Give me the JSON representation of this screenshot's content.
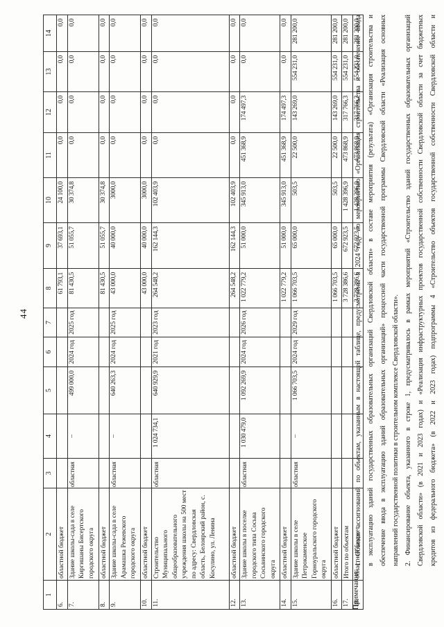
{
  "page": {
    "number": "44"
  },
  "table": {
    "column_headers": [
      "1",
      "2",
      "3",
      "4",
      "5",
      "6",
      "7",
      "8",
      "9",
      "10",
      "11",
      "12",
      "13",
      "14"
    ],
    "rows": [
      {
        "cells": [
          "6.",
          "областной бюджет",
          "",
          "",
          "",
          "",
          "",
          "61 793,1",
          "37 693,1",
          "24 100,0",
          "0,0",
          "0,0",
          "0,0",
          "0,0"
        ]
      },
      {
        "cells": [
          "7.",
          "Здание школы-сада в селе Киргишаны Бисертского городского округа",
          "областная",
          "–",
          "499 000,0",
          "2024 год",
          "2025 год",
          "81 430,5",
          "51 055,7",
          "30 374,8",
          "0,0",
          "0,0",
          "0,0",
          "0,0"
        ]
      },
      {
        "cells": [
          "8.",
          "областной бюджет",
          "",
          "",
          "",
          "",
          "",
          "81 430,5",
          "51 055,7",
          "30 374,8",
          "0,0",
          "0,0",
          "0,0",
          "0,0"
        ]
      },
      {
        "cells": [
          "9.",
          "Здание школы-сада в селе Арамашка Режевского городского округа",
          "областная",
          "–",
          "640 263,3",
          "2024 год",
          "2025 год",
          "43 000,0",
          "40 000,0",
          "3000,0",
          "0,0",
          "0,0",
          "0,0",
          "0,0"
        ]
      },
      {
        "cells": [
          "10.",
          "областной бюджет",
          "",
          "",
          "",
          "",
          "",
          "43 000,0",
          "40 000,0",
          "3000,0",
          "0,0",
          "0,0",
          "0,0",
          "0,0"
        ]
      },
      {
        "cells": [
          "11.",
          "Строительство Муниципального общеобразовательного учреждения школы на 500 мест по адресу: Свердловская область, Белоярский район, с. Косулино, ул. Ленина",
          "областная",
          "1 024 734,1",
          "640 929,9",
          "2021 год",
          "2023 год",
          "264 548,2",
          "162 144,3",
          "102 403,9",
          "0,0",
          "0,0",
          "0,0",
          "0,0"
        ]
      },
      {
        "cells": [
          "12.",
          "областной бюджет",
          "",
          "",
          "",
          "",
          "",
          "264 548,2",
          "162 144,3",
          "102 403,9",
          "0,0",
          "0,0",
          "0,0",
          "0,0"
        ]
      },
      {
        "cells": [
          "13.",
          "Здание школы в поселке городского типа Сосьва Сосьвинского городского округа",
          "областная",
          "1 030 479,0",
          "1 092 269,9",
          "2024 год",
          "2026 год",
          "1 022 779,2",
          "51 000,0",
          "345 913,0",
          "451 368,9",
          "174 497,3",
          "0,0",
          "0,0"
        ]
      },
      {
        "cells": [
          "14.",
          "областной бюджет",
          "",
          "",
          "",
          "",
          "",
          "1 022 779,2",
          "51 000,0",
          "345 913,0",
          "451 368,9",
          "174 497,3",
          "0,0",
          "0,0"
        ]
      },
      {
        "cells": [
          "15.",
          "Здание школы в селе Петрокаменское Горноуральского городского округа",
          "областная",
          "–",
          "1 066 703,5",
          "2024 год",
          "2029 год",
          "1 066 703,5",
          "65 000,0",
          "503,5",
          "22 500,0",
          "143 269,0",
          "554 231,0",
          "281 200,0"
        ]
      },
      {
        "cells": [
          "16.",
          "областной бюджет",
          "",
          "",
          "",
          "",
          "",
          "1 066 703,5",
          "65 000,0",
          "503,5",
          "22 500,0",
          "143 269,0",
          "554 231,0",
          "281 200,0"
        ]
      },
      {
        "cells": [
          "17.",
          "Итого по объектам",
          "",
          "",
          "",
          "",
          "",
          "3 728 386,6",
          "672 923,5",
          "1 428 396,9",
          "473 868,9",
          "317 766,3",
          "554 231,0",
          "281 200,0"
        ]
      },
      {
        "cells": [
          "18.",
          "областной бюджет",
          "",
          "",
          "",
          "",
          "",
          "3 728 386,6",
          "672 923,5",
          "1 428 396,9",
          "473 868,9",
          "317 766,3",
          "554 231,0",
          "281 200,0"
        ]
      }
    ]
  },
  "notes": {
    "label": "Примечания:",
    "lines": [
      {
        "text": "1. Объемы ассигнований по объектам, указанным в настоящей таблице, предусмотрены в 2024 году по мероприятию «Организация строительства и обеспечение ввода",
        "justify": true
      },
      {
        "text": "в эксплуатацию зданий государственных образовательных организаций Свердловской области» в составе мероприятия (результата) «Организация строительства и",
        "justify": true
      },
      {
        "text": "обеспечение ввода в эксплуатацию зданий образовательных организаций» процессной части государственной программы Свердловской области «Реализация основных",
        "justify": true
      },
      {
        "text": "направлений государственной политики в строительном комплексе Свердловской области».",
        "justify": false
      },
      {
        "text": "2. Финансирование объекта, указанного в строке 1, предусматривалось в рамках мероприятий «Строительство зданий государственных образовательных организаций",
        "justify": true
      },
      {
        "text": "Свердловской области» (в 2021 и 2023 годах) и «Реализация инфраструктурных проектов государственной собственности Свердловской области за счет бюджетных",
        "justify": true
      },
      {
        "text": "кредитов из федерального бюджета» (в 2022 и 2023 годах) подпрограммы 4 «Строительство объектов государственной собственности Свердловской области и",
        "justify": true
      }
    ]
  }
}
